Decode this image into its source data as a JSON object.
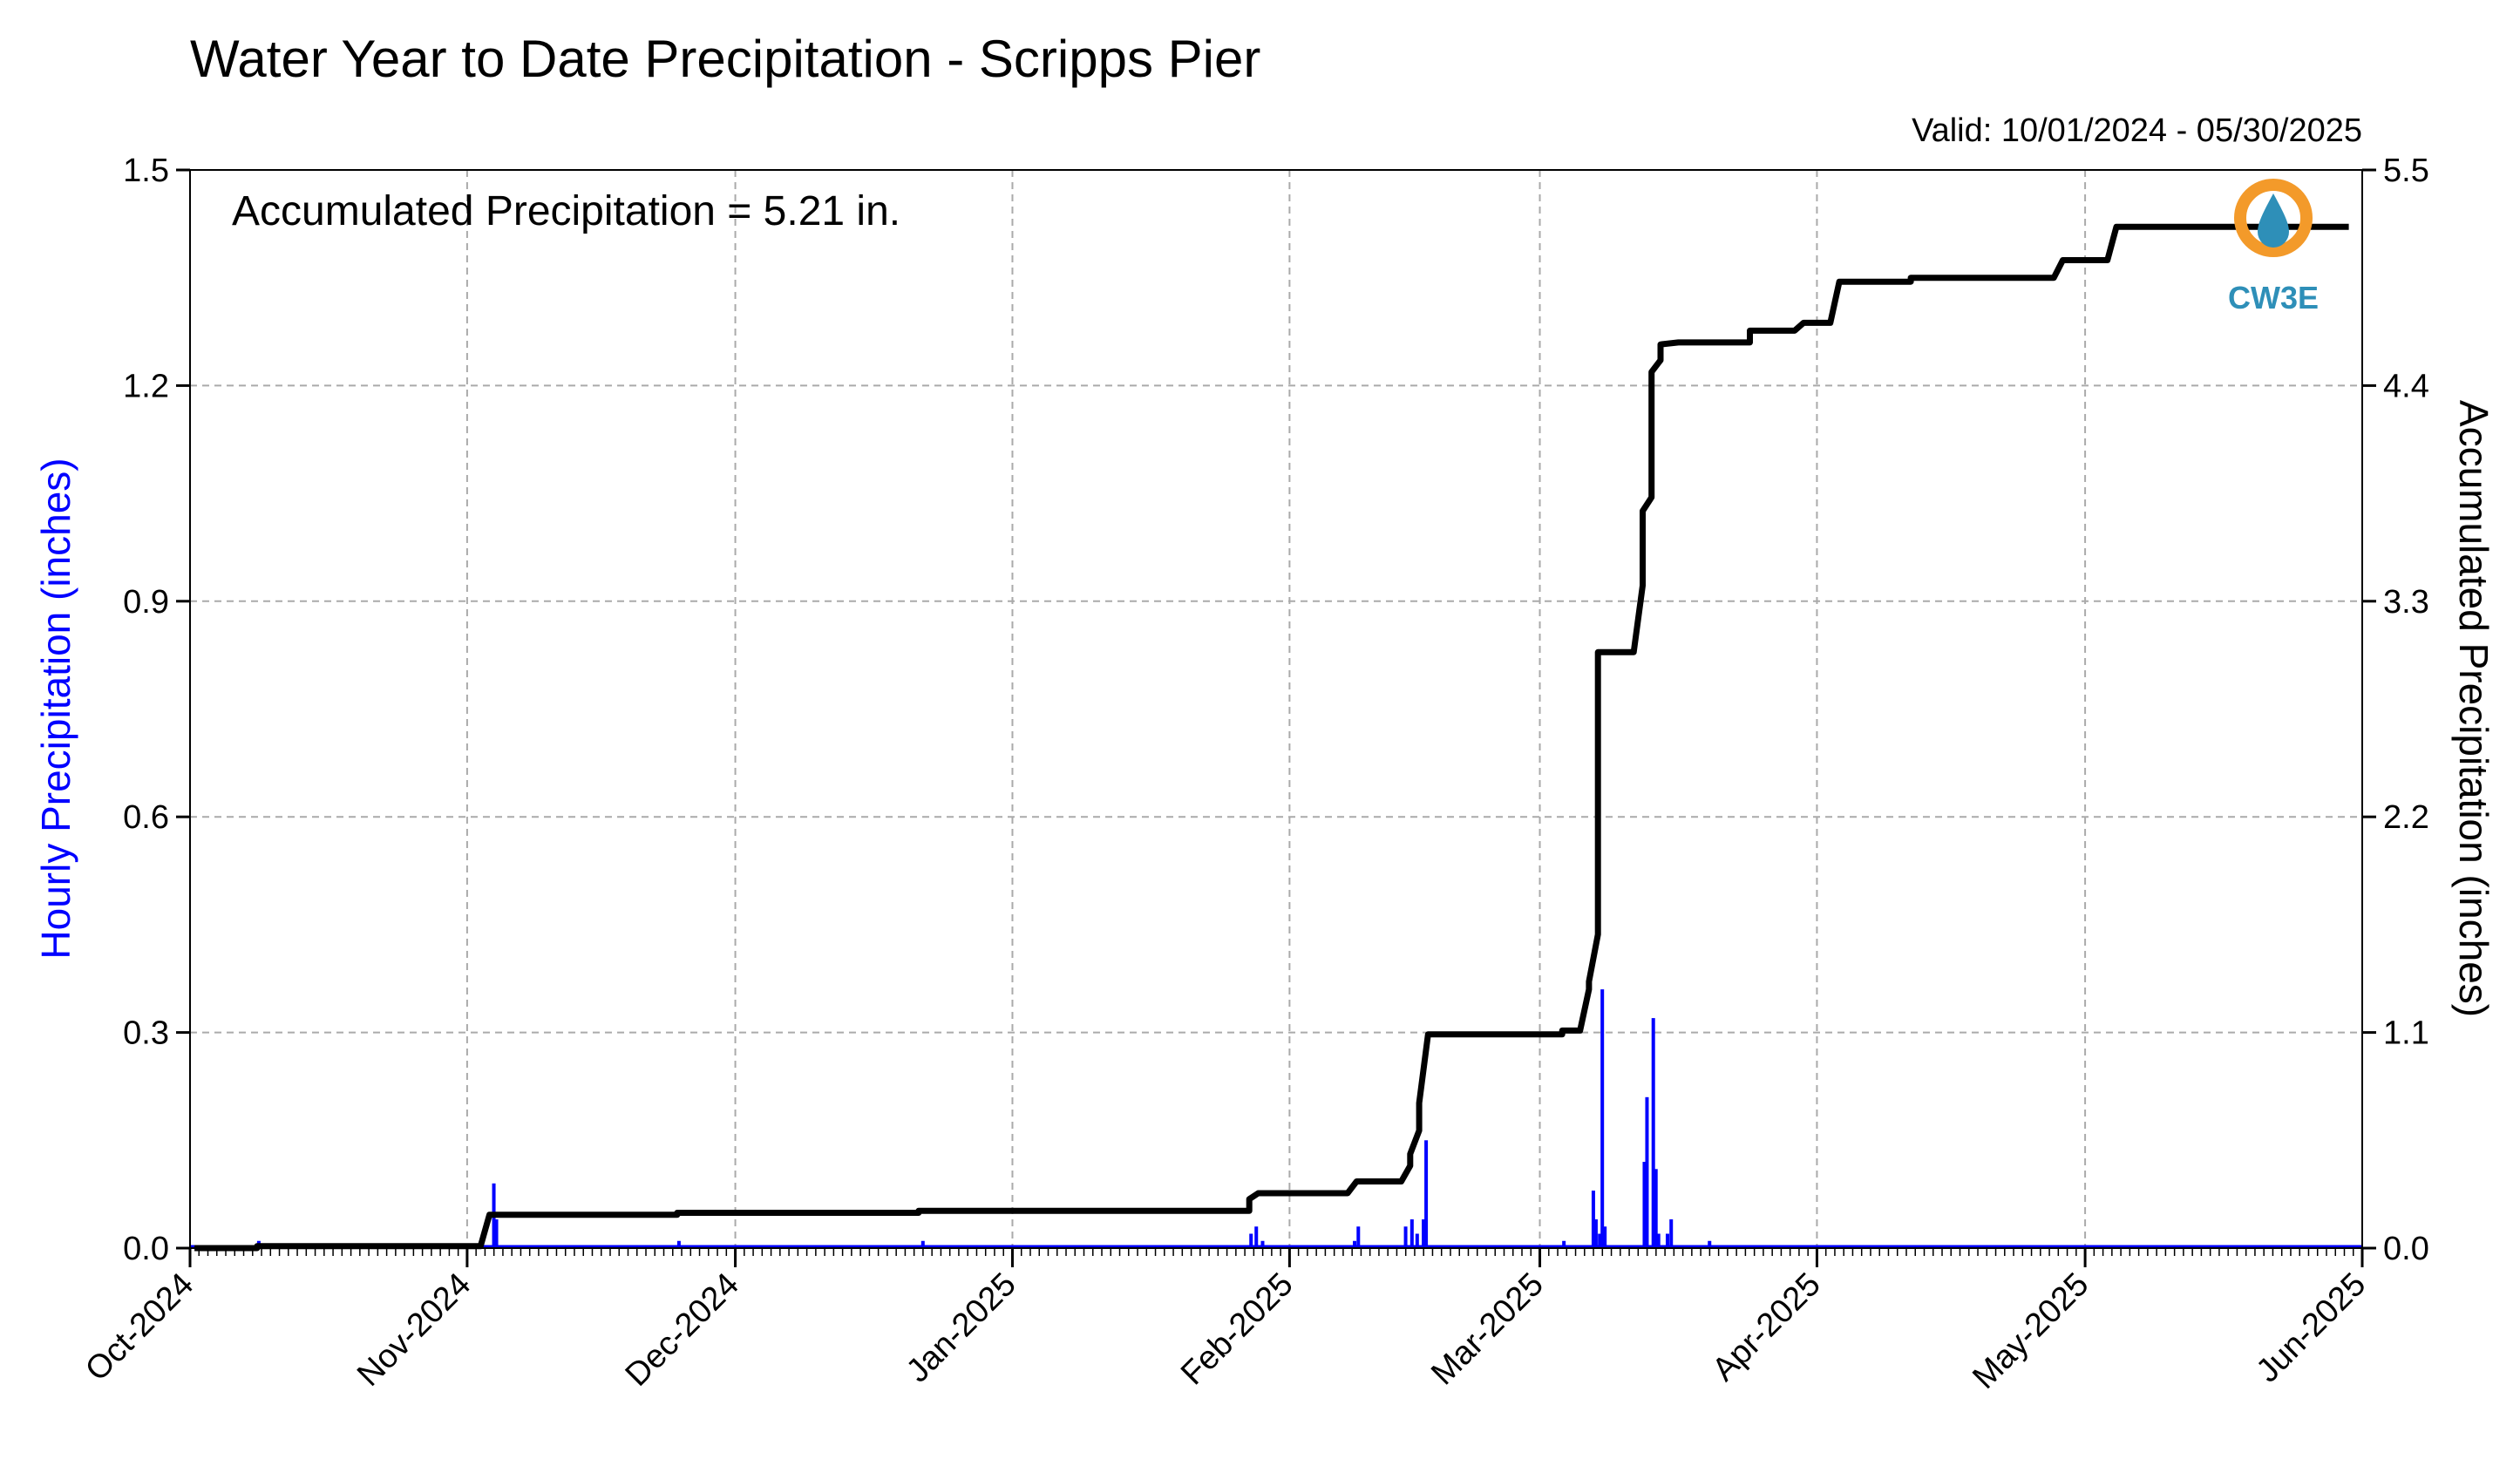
{
  "chart_data": {
    "type": "bar",
    "title": "Water Year to Date Precipitation - Scripps Pier",
    "valid_text": "Valid: 10/01/2024 - 05/30/2025",
    "annotation": "Accumulated Precipitation = 5.21 in.",
    "x_axis": {
      "ticks": [
        "Oct-2024",
        "Nov-2024",
        "Dec-2024",
        "Jan-2025",
        "Feb-2025",
        "Mar-2025",
        "Apr-2025",
        "May-2025",
        "Jun-2025"
      ],
      "tick_days": [
        0,
        31,
        61,
        92,
        123,
        151,
        182,
        212,
        243
      ]
    },
    "y_left": {
      "label": "Hourly Precipitation (inches)",
      "range": [
        0,
        1.5
      ],
      "ticks": [
        "0.0",
        "0.3",
        "0.6",
        "0.9",
        "1.2",
        "1.5"
      ],
      "tick_values": [
        0,
        0.3,
        0.6,
        0.9,
        1.2,
        1.5
      ],
      "color": "#0000ff"
    },
    "y_right": {
      "label": "Accumulated Precipitation (inches)",
      "range": [
        0,
        5.5
      ],
      "ticks": [
        "0.0",
        "1.1",
        "2.2",
        "3.3",
        "4.4",
        "5.5"
      ],
      "tick_values": [
        0,
        1.1,
        2.2,
        3.3,
        4.4,
        5.5
      ],
      "color": "#000000"
    },
    "grid": true,
    "series": [
      {
        "kind": "hourly_bars",
        "color": "#0000ff",
        "points": [
          {
            "date": "2024-10-08",
            "value": 0.01
          },
          {
            "date": "2024-11-03",
            "value": 0.09
          },
          {
            "date": "2024-11-03",
            "value": 0.04
          },
          {
            "date": "2024-11-24",
            "value": 0.01
          },
          {
            "date": "2024-12-21",
            "value": 0.01
          },
          {
            "date": "2025-01-27",
            "value": 0.03
          },
          {
            "date": "2025-01-27",
            "value": 0.02
          },
          {
            "date": "2025-01-28",
            "value": 0.01
          },
          {
            "date": "2025-02-07",
            "value": 0.01
          },
          {
            "date": "2025-02-08",
            "value": 0.03
          },
          {
            "date": "2025-02-13",
            "value": 0.03
          },
          {
            "date": "2025-02-14",
            "value": 0.02
          },
          {
            "date": "2025-02-14",
            "value": 0.04
          },
          {
            "date": "2025-02-15",
            "value": 0.04
          },
          {
            "date": "2025-02-15",
            "value": 0.15
          },
          {
            "date": "2025-03-03",
            "value": 0.01
          },
          {
            "date": "2025-03-06",
            "value": 0.08
          },
          {
            "date": "2025-03-06",
            "value": 0.04
          },
          {
            "date": "2025-03-07",
            "value": 0.02
          },
          {
            "date": "2025-03-07",
            "value": 0.36
          },
          {
            "date": "2025-03-07",
            "value": 0.03
          },
          {
            "date": "2025-03-12",
            "value": 0.12
          },
          {
            "date": "2025-03-12",
            "value": 0.21
          },
          {
            "date": "2025-03-13",
            "value": 0.02
          },
          {
            "date": "2025-03-13",
            "value": 0.32
          },
          {
            "date": "2025-03-13",
            "value": 0.11
          },
          {
            "date": "2025-03-14",
            "value": 0.02
          },
          {
            "date": "2025-03-15",
            "value": 0.04
          },
          {
            "date": "2025-03-19",
            "value": 0.01
          }
        ]
      },
      {
        "kind": "accumulated_line",
        "color": "#000000",
        "points": [
          {
            "date": "2024-10-01",
            "value": 0.0
          },
          {
            "date": "2024-10-08",
            "value": 0.0
          },
          {
            "date": "2024-10-08",
            "value": 0.01
          },
          {
            "date": "2024-11-02",
            "value": 0.01
          },
          {
            "date": "2024-11-03",
            "value": 0.17
          },
          {
            "date": "2024-11-24",
            "value": 0.17
          },
          {
            "date": "2024-11-24",
            "value": 0.18
          },
          {
            "date": "2024-12-21",
            "value": 0.18
          },
          {
            "date": "2024-12-21",
            "value": 0.19
          },
          {
            "date": "2025-01-27",
            "value": 0.19
          },
          {
            "date": "2025-01-27",
            "value": 0.25
          },
          {
            "date": "2025-01-28",
            "value": 0.28
          },
          {
            "date": "2025-02-07",
            "value": 0.28
          },
          {
            "date": "2025-02-08",
            "value": 0.34
          },
          {
            "date": "2025-02-13",
            "value": 0.34
          },
          {
            "date": "2025-02-14",
            "value": 0.42
          },
          {
            "date": "2025-02-14",
            "value": 0.48
          },
          {
            "date": "2025-02-15",
            "value": 0.6
          },
          {
            "date": "2025-02-15",
            "value": 0.74
          },
          {
            "date": "2025-02-16",
            "value": 1.09
          },
          {
            "date": "2025-03-03",
            "value": 1.09
          },
          {
            "date": "2025-03-03",
            "value": 1.11
          },
          {
            "date": "2025-03-05",
            "value": 1.11
          },
          {
            "date": "2025-03-06",
            "value": 1.32
          },
          {
            "date": "2025-03-06",
            "value": 1.36
          },
          {
            "date": "2025-03-07",
            "value": 1.6
          },
          {
            "date": "2025-03-07",
            "value": 3.04
          },
          {
            "date": "2025-03-11",
            "value": 3.04
          },
          {
            "date": "2025-03-12",
            "value": 3.38
          },
          {
            "date": "2025-03-12",
            "value": 3.76
          },
          {
            "date": "2025-03-13",
            "value": 3.83
          },
          {
            "date": "2025-03-13",
            "value": 4.47
          },
          {
            "date": "2025-03-14",
            "value": 4.53
          },
          {
            "date": "2025-03-14",
            "value": 4.61
          },
          {
            "date": "2025-03-16",
            "value": 4.62
          },
          {
            "date": "2025-03-24",
            "value": 4.62
          },
          {
            "date": "2025-03-24",
            "value": 4.68
          },
          {
            "date": "2025-03-29",
            "value": 4.68
          },
          {
            "date": "2025-03-30",
            "value": 4.72
          },
          {
            "date": "2025-04-02",
            "value": 4.72
          },
          {
            "date": "2025-04-03",
            "value": 4.93
          },
          {
            "date": "2025-04-11",
            "value": 4.93
          },
          {
            "date": "2025-04-11",
            "value": 4.95
          },
          {
            "date": "2025-04-27",
            "value": 4.95
          },
          {
            "date": "2025-04-28",
            "value": 5.04
          },
          {
            "date": "2025-05-03",
            "value": 5.04
          },
          {
            "date": "2025-05-04",
            "value": 5.21
          },
          {
            "date": "2025-05-30",
            "value": 5.21
          }
        ]
      }
    ]
  },
  "logo": {
    "text": "CW3E",
    "ring_color": "#f39a2a",
    "drop_color": "#2e8fb8"
  }
}
